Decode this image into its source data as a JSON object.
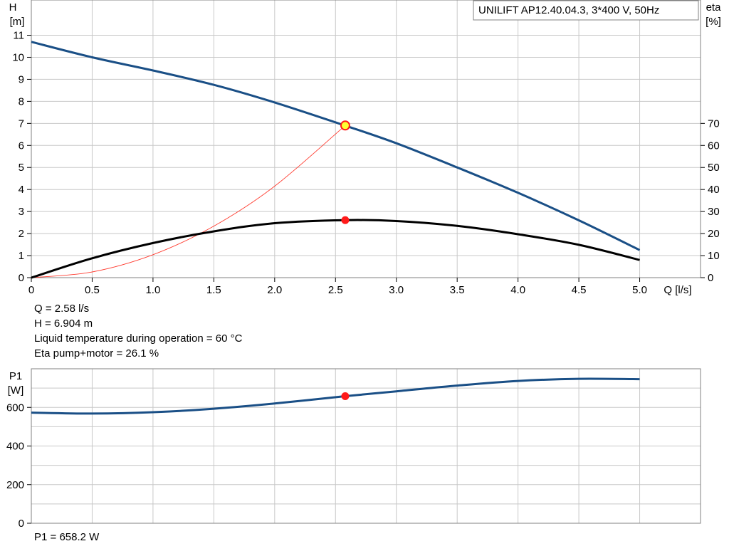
{
  "legend_label": "UNILIFT  AP12.40.04.3, 3*400 V, 50Hz",
  "colors": {
    "head_curve": "#1a4f86",
    "eta_curve": "#000000",
    "system_curve": "#ff3b2f",
    "grid": "#c8c8c8",
    "point_fill": "#ff1a1a",
    "duty_point_fill": "#ffff33"
  },
  "chart_data": [
    {
      "type": "line",
      "title": "UNILIFT  AP12.40.04.3, 3*400 V, 50Hz",
      "xlabel": "Q [l/s]",
      "ylabel_left": "H\n[m]",
      "ylabel_right": "eta\n[%]",
      "xlim": [
        0,
        5.5
      ],
      "ylim_left": [
        0,
        12.6
      ],
      "ylim_right": [
        0,
        126
      ],
      "x_ticks": [
        "0",
        "0.5",
        "1.0",
        "1.5",
        "2.0",
        "2.5",
        "3.0",
        "3.5",
        "4.0",
        "4.5",
        "5.0"
      ],
      "y_ticks_left": [
        "0",
        "1",
        "2",
        "3",
        "4",
        "5",
        "6",
        "7",
        "8",
        "9",
        "10",
        "11"
      ],
      "y_ticks_right": [
        "0",
        "10",
        "20",
        "30",
        "40",
        "50",
        "60",
        "70"
      ],
      "grid": true,
      "legend_position": "top-right",
      "series": [
        {
          "axis": "left",
          "x": [
            0,
            0.5,
            1.0,
            1.5,
            2.0,
            2.58,
            3.0,
            3.5,
            4.0,
            4.5,
            5.0
          ],
          "values": [
            10.7,
            10.0,
            9.4,
            8.75,
            7.95,
            6.9,
            6.1,
            5.0,
            3.85,
            2.6,
            1.25
          ]
        },
        {
          "axis": "right",
          "x": [
            0,
            0.5,
            1.0,
            1.5,
            2.0,
            2.58,
            3.0,
            3.5,
            4.0,
            4.5,
            5.0
          ],
          "values": [
            0,
            8.8,
            15.7,
            21.0,
            24.7,
            26.1,
            25.7,
            23.5,
            19.7,
            14.9,
            8.0
          ]
        },
        {
          "axis": "left",
          "x": [
            0,
            0.5,
            1.0,
            1.5,
            2.0,
            2.58
          ],
          "values": [
            0,
            0.26,
            1.04,
            2.34,
            4.15,
            6.904
          ]
        }
      ],
      "points": [
        {
          "axis": "left",
          "x": 2.58,
          "y": 6.904,
          "style": "duty"
        },
        {
          "axis": "right",
          "x": 2.58,
          "y": 26.1,
          "style": "dot"
        }
      ]
    },
    {
      "type": "line",
      "ylabel": "P1\n[W]",
      "xlim": [
        0,
        5.5
      ],
      "ylim": [
        0,
        800
      ],
      "x_ticks": [
        "0",
        "0.5",
        "1.0",
        "1.5",
        "2.0",
        "2.5",
        "3.0",
        "3.5",
        "4.0",
        "4.5",
        "5.0"
      ],
      "y_ticks": [
        "0",
        "200",
        "400",
        "600"
      ],
      "grid": true,
      "series": [
        {
          "x": [
            0,
            0.5,
            1.0,
            1.5,
            2.0,
            2.58,
            3.0,
            3.5,
            4.0,
            4.5,
            5.0
          ],
          "values": [
            573,
            568,
            575,
            593,
            620,
            658,
            683,
            713,
            737,
            748,
            746
          ]
        }
      ],
      "points": [
        {
          "x": 2.58,
          "y": 658.2,
          "style": "dot"
        }
      ]
    }
  ],
  "readouts": {
    "q": "Q = 2.58 l/s",
    "h": "H = 6.904 m",
    "liquid_temp": "Liquid temperature during operation = 60 °C",
    "eta": "Eta pump+motor = 26.1 %",
    "p1": "P1 = 658.2 W"
  }
}
